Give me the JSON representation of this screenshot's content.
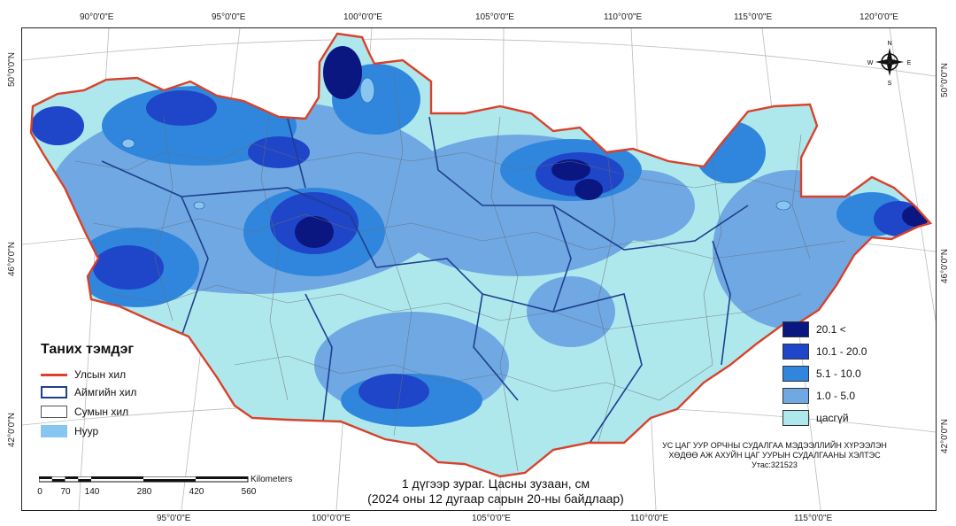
{
  "map": {
    "caption_line1": "1 дүгээр зураг. Цасны зузаан, см",
    "caption_line2": "(2024 оны 12 дугаар сарын 20-ны байдлаар)",
    "credit_line1": "УС ЦАГ УУР ОРЧНЫ СУДАЛГАА МЭДЭЭЛЛИЙН ХҮРЭЭЛЭН",
    "credit_line2": "ХӨДӨӨ АЖ АХУЙН ЦАГ УУРЫН СУДАЛГААНЫ ХЭЛТЭС",
    "credit_line3": "Утас:321523"
  },
  "graticule": {
    "top": [
      "90°0'0\"E",
      "95°0'0\"E",
      "100°0'0\"E",
      "105°0'0\"E",
      "110°0'0\"E",
      "115°0'0\"E",
      "120°0'0\"E"
    ],
    "bottom": [
      "95°0'0\"E",
      "100°0'0\"E",
      "105°0'0\"E",
      "110°0'0\"E",
      "115°0'0\"E"
    ],
    "left": [
      "50°0'0\"N",
      "46°0'0\"N",
      "42°0'0\"N"
    ],
    "right": [
      "50°0'0\"N",
      "46°0'0\"N",
      "42°0'0\"N"
    ]
  },
  "legend": {
    "title": "Таних тэмдэг",
    "items": [
      {
        "label": "Улсын хил",
        "color": "#d9412b"
      },
      {
        "label": "Аймгийн хил",
        "color": "#1f3f8f"
      },
      {
        "label": "Сумын хил",
        "color": "#555555"
      },
      {
        "label": "Нуур",
        "color": "#87c6f0"
      }
    ]
  },
  "classes": [
    {
      "label": "20.1 <",
      "color": "#0a1780"
    },
    {
      "label": "10.1 - 20.0",
      "color": "#1f45c8"
    },
    {
      "label": "5.1 - 10.0",
      "color": "#2f86dc"
    },
    {
      "label": "1.0 - 5.0",
      "color": "#6fa8e2"
    },
    {
      "label": "цасгүй",
      "color": "#aee8ec"
    }
  ],
  "scalebar": {
    "unit": "Kilometers",
    "ticks": [
      "0",
      "70",
      "140",
      "280",
      "420",
      "560"
    ]
  },
  "north_arrow": {
    "n": "N",
    "s": "S",
    "e": "E",
    "w": "W"
  }
}
